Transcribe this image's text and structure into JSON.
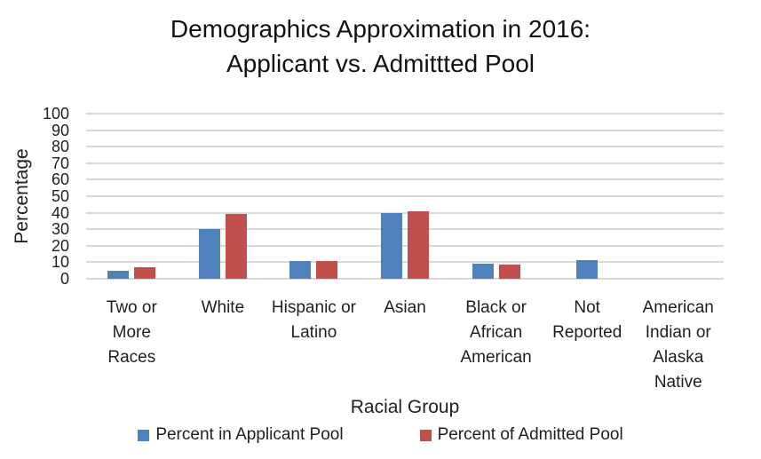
{
  "figure": {
    "title_line1": "Demographics Approximation in 2016:",
    "title_line2": "Applicant vs. Admittted Pool"
  },
  "legend": {
    "items": [
      {
        "label": "Percent in Applicant Pool",
        "color": "#4F81BD"
      },
      {
        "label": "Percent of Admitted Pool",
        "color": "#C0504D"
      }
    ]
  },
  "colors": {
    "applicant_blue": "#4F81BD",
    "admitted_red": "#C0504D",
    "gridline_gray": "#D9D9D9"
  },
  "chart_data": {
    "type": "bar",
    "title": "Demographics Approximation in 2016: Applicant vs. Admittted Pool",
    "categories": [
      "Two or More Races",
      "White",
      "Hispanic or Latino",
      "Asian",
      "Black or African American",
      "Not Reported",
      "American Indian or Alaska Native"
    ],
    "x_tick_display": [
      "Two or\nMore\nRaces",
      "White",
      "Hispanic or\nLatino",
      "Asian",
      "Black or\nAfrican\nAmerican",
      "Not\nReported",
      "American\nIndian or\nAlaska\nNative"
    ],
    "series": [
      {
        "name": "Percent in Applicant Pool",
        "color": "#4F81BD",
        "values": [
          5,
          30,
          10.5,
          40,
          9,
          11.5,
          0
        ]
      },
      {
        "name": "Percent of Admitted Pool",
        "color": "#C0504D",
        "values": [
          7,
          39,
          11,
          41,
          8.5,
          0,
          0
        ]
      }
    ],
    "xlabel": "Racial Group",
    "ylabel": "Percentage",
    "ylim": [
      0,
      100
    ],
    "yticks": [
      0,
      10,
      20,
      30,
      40,
      50,
      60,
      70,
      80,
      90,
      100
    ],
    "grid": true,
    "legend_position": "bottom"
  }
}
